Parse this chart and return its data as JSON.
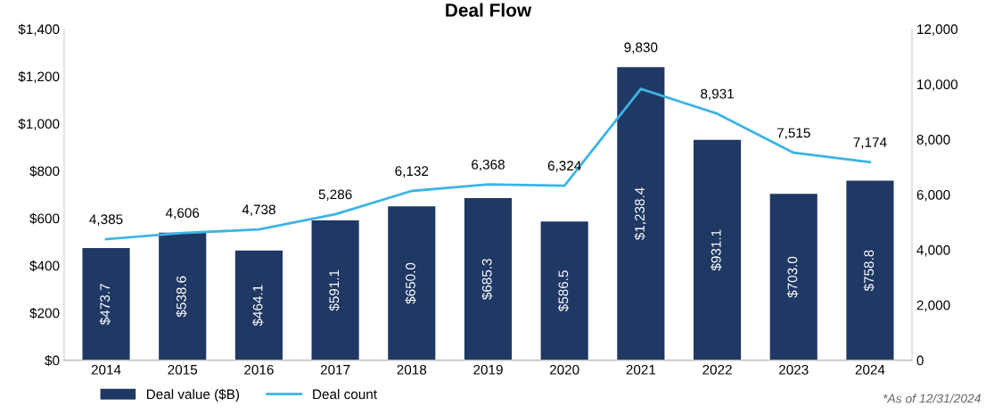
{
  "chart_data": {
    "type": "bar",
    "title": "Deal Flow",
    "categories": [
      "2014",
      "2015",
      "2016",
      "2017",
      "2018",
      "2019",
      "2020",
      "2021",
      "2022",
      "2023",
      "2024"
    ],
    "series": [
      {
        "name": "Deal value ($B)",
        "color": "#1f3864",
        "values": [
          473.7,
          538.6,
          464.1,
          591.1,
          650.0,
          685.3,
          586.5,
          1238.4,
          931.1,
          703.0,
          758.8
        ],
        "value_labels": [
          "$473.7",
          "$538.6",
          "$464.1",
          "$591.1",
          "$650.0",
          "$685.3",
          "$586.5",
          "$1,238.4",
          "$931.1",
          "$703.0",
          "$758.8"
        ]
      },
      {
        "name": "Deal count",
        "type": "line",
        "axis": "y2",
        "color": "#3cb4e5",
        "values": [
          4385,
          4606,
          4738,
          5286,
          6132,
          6368,
          6324,
          9830,
          8931,
          7515,
          7174
        ],
        "value_labels": [
          "4,385",
          "4,606",
          "4,738",
          "5,286",
          "6,132",
          "6,368",
          "6,324",
          "9,830",
          "8,931",
          "7,515",
          "7,174"
        ]
      }
    ],
    "ylim": [
      0,
      1400
    ],
    "yticks": [
      {
        "value": 0,
        "label": "$0"
      },
      {
        "value": 200,
        "label": "$200"
      },
      {
        "value": 400,
        "label": "$400"
      },
      {
        "value": 600,
        "label": "$600"
      },
      {
        "value": 800,
        "label": "$800"
      },
      {
        "value": 1000,
        "label": "$1,000"
      },
      {
        "value": 1200,
        "label": "$1,200"
      },
      {
        "value": 1400,
        "label": "$1,400"
      }
    ],
    "y2lim": [
      0,
      12000
    ],
    "y2ticks": [
      {
        "value": 0,
        "label": "0"
      },
      {
        "value": 2000,
        "label": "2,000"
      },
      {
        "value": 4000,
        "label": "4,000"
      },
      {
        "value": 6000,
        "label": "6,000"
      },
      {
        "value": 8000,
        "label": "8,000"
      },
      {
        "value": 10000,
        "label": "10,000"
      },
      {
        "value": 12000,
        "label": "12,000"
      }
    ],
    "grid": false,
    "legend": "bottom left",
    "marker": "none",
    "line_style": "solid",
    "annotations": [
      "*As of 12/31/2024"
    ]
  }
}
